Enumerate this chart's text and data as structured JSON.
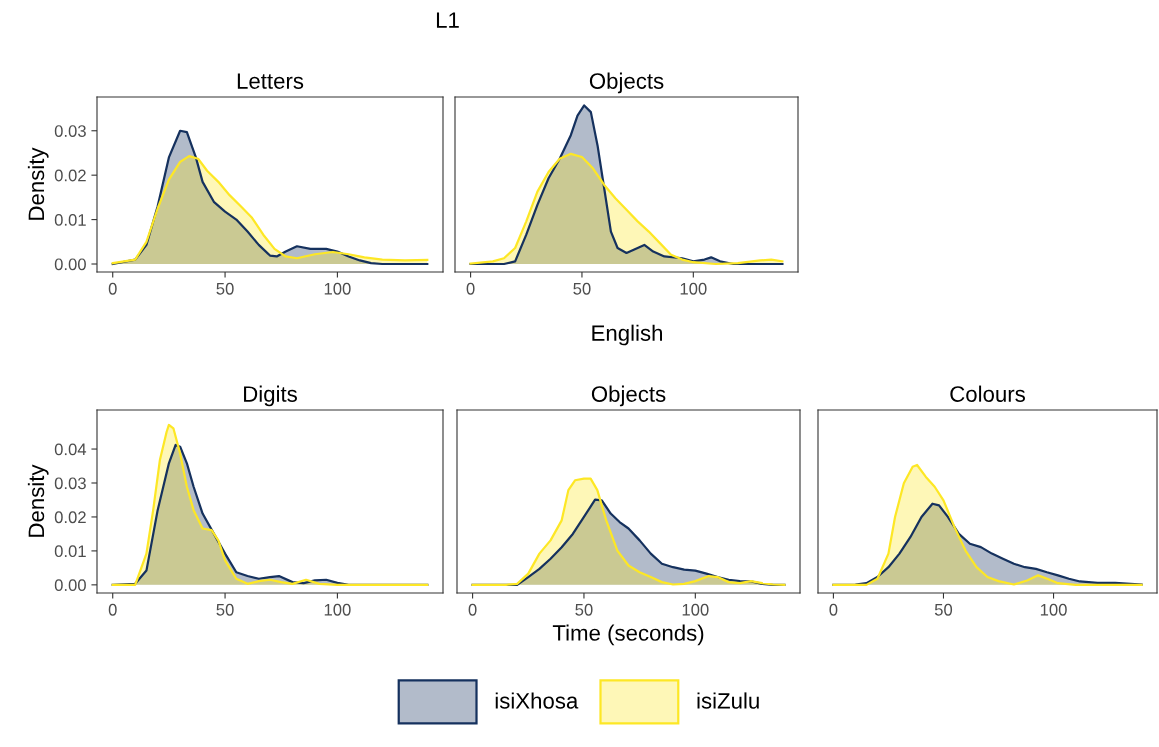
{
  "chart_data": [
    {
      "type": "area",
      "title": "Letters",
      "ylabel": "Density",
      "annotations": [
        "L1"
      ],
      "legend": "bottom",
      "xlim": [
        -7,
        147
      ],
      "xticks": [
        0,
        50,
        100
      ],
      "ylim": [
        -0.0018,
        0.0376
      ],
      "yticks": [
        {
          "value": 0,
          "label": "0.00"
        },
        {
          "value": 0.01,
          "label": "0.01"
        },
        {
          "value": 0.02,
          "label": "0.02"
        },
        {
          "value": 0.03,
          "label": "0.03"
        }
      ],
      "series": [
        {
          "name": "isiXhosa",
          "color": "#15315e",
          "x": [
            0,
            10,
            15,
            20,
            25,
            30,
            33,
            37,
            40,
            45,
            50,
            55,
            60,
            65,
            70,
            73,
            77,
            82,
            88,
            95,
            100,
            105,
            110,
            115,
            120,
            140
          ],
          "values": [
            0,
            0.001,
            0.0043,
            0.013,
            0.024,
            0.03,
            0.0297,
            0.024,
            0.0185,
            0.014,
            0.0118,
            0.01,
            0.0073,
            0.0043,
            0.0019,
            0.0017,
            0.0028,
            0.004,
            0.0034,
            0.0034,
            0.0028,
            0.0017,
            0.0008,
            0.0002,
            0,
            0
          ]
        },
        {
          "name": "isiZulu",
          "color": "#fde725",
          "x": [
            0,
            10,
            15,
            20,
            25,
            30,
            34,
            38,
            42,
            47,
            52,
            57,
            62,
            67,
            72,
            77,
            82,
            90,
            98,
            105,
            112,
            120,
            130,
            140
          ],
          "values": [
            0.0002,
            0.001,
            0.005,
            0.0125,
            0.019,
            0.023,
            0.0243,
            0.0237,
            0.021,
            0.0185,
            0.0155,
            0.013,
            0.0104,
            0.0066,
            0.0034,
            0.0017,
            0.0013,
            0.0022,
            0.0027,
            0.0022,
            0.0015,
            0.001,
            0.0008,
            0.0009
          ]
        }
      ]
    },
    {
      "type": "area",
      "title": "Objects",
      "tick_labels": "x",
      "xlim": [
        -7,
        147
      ],
      "xticks": [
        0,
        50,
        100
      ],
      "ylim": [
        -0.0018,
        0.0376
      ],
      "series": [
        {
          "color": "#15315e",
          "x": [
            0,
            15,
            20,
            25,
            30,
            35,
            40,
            45,
            48,
            51,
            54,
            57,
            60,
            63,
            66,
            70,
            75,
            78,
            82,
            87,
            95,
            100,
            105,
            108,
            112,
            118,
            140
          ],
          "values": [
            0,
            0,
            0.0006,
            0.0066,
            0.0133,
            0.0193,
            0.0237,
            0.029,
            0.0334,
            0.0357,
            0.0342,
            0.0267,
            0.017,
            0.0073,
            0.0036,
            0.0025,
            0.0036,
            0.0043,
            0.0028,
            0.0017,
            0.0013,
            0.0006,
            0.001,
            0.0015,
            0.0006,
            0,
            0
          ]
        },
        {
          "color": "#fde725",
          "x": [
            0,
            10,
            15,
            20,
            25,
            30,
            35,
            40,
            45,
            50,
            55,
            60,
            65,
            70,
            75,
            80,
            85,
            90,
            95,
            100,
            110,
            120,
            130,
            135,
            140
          ],
          "values": [
            0.0001,
            0.0006,
            0.0013,
            0.0036,
            0.0096,
            0.0163,
            0.0207,
            0.0237,
            0.0248,
            0.0241,
            0.0215,
            0.0178,
            0.0148,
            0.0122,
            0.0096,
            0.0073,
            0.0047,
            0.0021,
            0.001,
            0.0004,
            0,
            0.0002,
            0.0008,
            0.001,
            0.0006
          ]
        }
      ]
    },
    {
      "type": "area",
      "title": "Digits",
      "ylabel": "Density",
      "annotations": [
        "English"
      ],
      "xlim": [
        -7,
        147
      ],
      "xticks": [
        0,
        50,
        100
      ],
      "ylim": [
        -0.0024,
        0.0515
      ],
      "yticks": [
        {
          "value": 0,
          "label": "0.00"
        },
        {
          "value": 0.01,
          "label": "0.01"
        },
        {
          "value": 0.02,
          "label": "0.02"
        },
        {
          "value": 0.03,
          "label": "0.03"
        },
        {
          "value": 0.04,
          "label": "0.04"
        }
      ],
      "series": [
        {
          "color": "#15315e",
          "x": [
            0,
            10,
            15,
            20,
            25,
            28,
            30,
            33,
            36,
            40,
            45,
            50,
            55,
            60,
            65,
            70,
            74,
            80,
            85,
            90,
            95,
            100,
            105,
            140
          ],
          "values": [
            0,
            0.0003,
            0.0042,
            0.022,
            0.0358,
            0.0412,
            0.0407,
            0.0358,
            0.0289,
            0.021,
            0.0151,
            0.0092,
            0.0037,
            0.0026,
            0.0018,
            0.0023,
            0.0026,
            0.0008,
            0.0005,
            0.0013,
            0.0015,
            0.0006,
            0,
            0
          ]
        },
        {
          "color": "#fde725",
          "x": [
            0,
            10,
            15,
            18,
            21,
            24,
            25,
            27,
            30,
            33,
            36,
            40,
            44,
            47,
            50,
            55,
            60,
            65,
            70,
            75,
            80,
            86,
            92,
            100,
            140
          ],
          "values": [
            0,
            0,
            0.0092,
            0.022,
            0.0368,
            0.0451,
            0.0471,
            0.0461,
            0.0387,
            0.0289,
            0.022,
            0.0166,
            0.0161,
            0.0131,
            0.0072,
            0.0018,
            0.0003,
            0.0011,
            0.0015,
            0.0008,
            0.0003,
            0.0015,
            0.0003,
            0,
            0
          ]
        }
      ]
    },
    {
      "type": "area",
      "title": "Objects",
      "xlabel": "Time (seconds)",
      "tick_labels": "x",
      "xlim": [
        -7,
        147
      ],
      "xticks": [
        0,
        50,
        100
      ],
      "ylim": [
        -0.0024,
        0.0515
      ],
      "series": [
        {
          "color": "#15315e",
          "x": [
            0,
            20,
            25,
            30,
            35,
            40,
            45,
            50,
            55,
            58,
            62,
            66,
            70,
            75,
            80,
            85,
            90,
            95,
            100,
            105,
            110,
            115,
            120,
            125,
            130,
            135,
            140
          ],
          "values": [
            0,
            0,
            0.0023,
            0.0047,
            0.0077,
            0.0111,
            0.015,
            0.02,
            0.0251,
            0.0249,
            0.021,
            0.0185,
            0.0166,
            0.0131,
            0.0092,
            0.0062,
            0.0052,
            0.0045,
            0.0042,
            0.0033,
            0.0023,
            0.0015,
            0.0011,
            0.001,
            0.0003,
            0,
            0
          ]
        },
        {
          "color": "#fde725",
          "x": [
            0,
            15,
            20,
            25,
            30,
            35,
            40,
            43,
            46,
            50,
            53,
            56,
            60,
            65,
            70,
            75,
            80,
            85,
            90,
            95,
            100,
            106,
            110,
            115,
            120,
            125,
            130,
            135,
            140
          ],
          "values": [
            0,
            0,
            0.0003,
            0.0033,
            0.0092,
            0.0131,
            0.019,
            0.0279,
            0.0308,
            0.0313,
            0.0313,
            0.0279,
            0.019,
            0.0101,
            0.0057,
            0.0037,
            0.0023,
            0.0008,
            0.0001,
            0.0003,
            0.0011,
            0.0026,
            0.0023,
            0.0008,
            0.0005,
            0.0011,
            0.0005,
            0.0001,
            0
          ]
        }
      ]
    },
    {
      "type": "area",
      "title": "Colours",
      "tick_labels": "x",
      "xlim": [
        -7,
        147
      ],
      "xticks": [
        0,
        50,
        100
      ],
      "ylim": [
        -0.0024,
        0.0515
      ],
      "series": [
        {
          "color": "#15315e",
          "x": [
            0,
            10,
            15,
            20,
            25,
            30,
            35,
            40,
            45,
            48,
            52,
            57,
            62,
            67,
            72,
            77,
            82,
            87,
            92,
            97,
            102,
            107,
            112,
            120,
            128,
            135,
            140
          ],
          "values": [
            0,
            0.0001,
            0.0005,
            0.0023,
            0.0052,
            0.0092,
            0.0141,
            0.02,
            0.0239,
            0.0234,
            0.02,
            0.015,
            0.0121,
            0.0111,
            0.0092,
            0.0077,
            0.0062,
            0.0052,
            0.0047,
            0.0037,
            0.0028,
            0.0018,
            0.001,
            0.0006,
            0.0006,
            0.0003,
            0.0001
          ]
        },
        {
          "color": "#fde725",
          "x": [
            0,
            15,
            20,
            25,
            28,
            32,
            36,
            38,
            42,
            46,
            50,
            55,
            60,
            65,
            70,
            75,
            82,
            88,
            93,
            98,
            102,
            110,
            140
          ],
          "values": [
            0,
            0,
            0.0018,
            0.0092,
            0.02,
            0.0299,
            0.0348,
            0.0353,
            0.0318,
            0.0289,
            0.0249,
            0.017,
            0.0101,
            0.0052,
            0.0023,
            0.0011,
            0.0001,
            0.0013,
            0.0028,
            0.0016,
            0.0005,
            0,
            0
          ]
        }
      ]
    }
  ]
}
